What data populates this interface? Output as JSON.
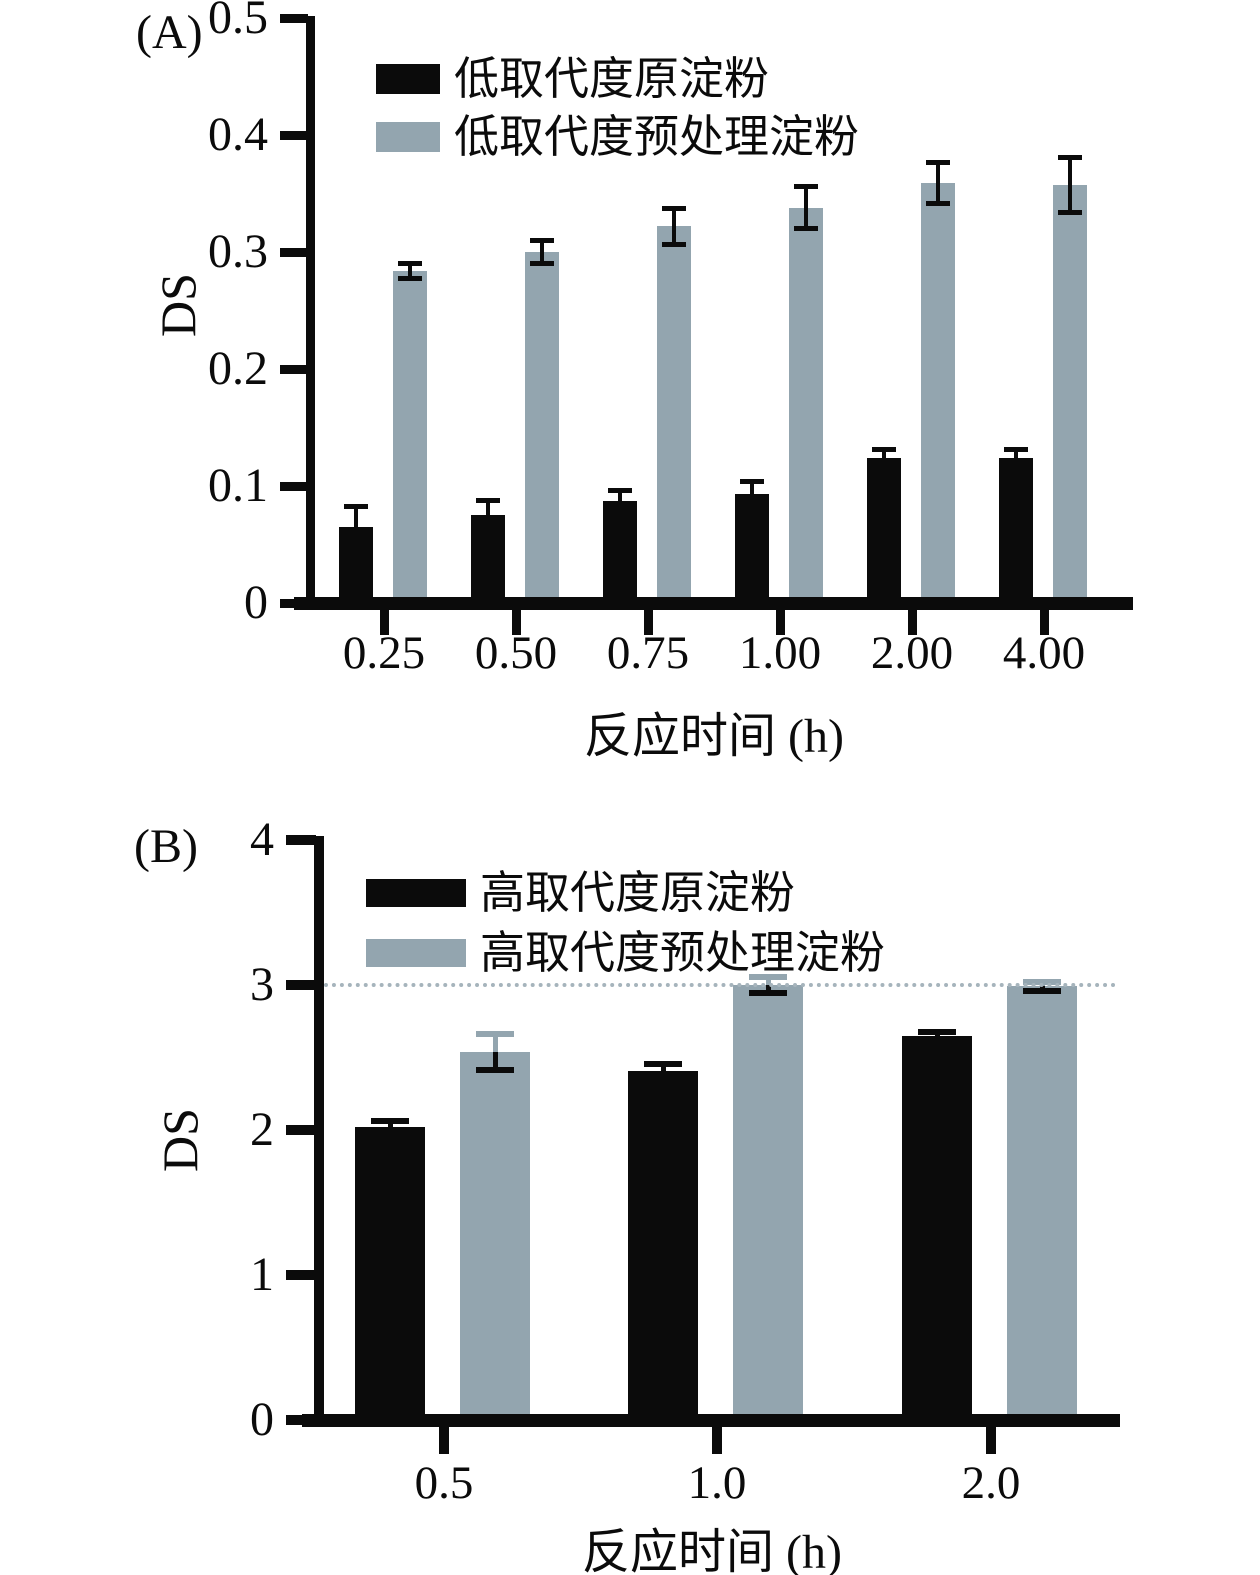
{
  "figure": {
    "background": "#ffffff",
    "ink_color": "#0b0b0b",
    "bar_gray_color": "#93a5af"
  },
  "chart_data": [
    {
      "type": "bar",
      "panel_label": "(A)",
      "categories": [
        "0.25",
        "0.50",
        "0.75",
        "1.00",
        "2.00",
        "4.00"
      ],
      "series": [
        {
          "name": "低取代度原淀粉",
          "color": "#0b0b0b",
          "values": [
            0.065,
            0.075,
            0.087,
            0.093,
            0.124,
            0.124
          ],
          "errors": [
            0.018,
            0.013,
            0.01,
            0.011,
            0.008,
            0.008
          ]
        },
        {
          "name": "低取代度预处理淀粉",
          "color": "#93a5af",
          "values": [
            0.284,
            0.3,
            0.322,
            0.338,
            0.359,
            0.357
          ],
          "errors": [
            0.007,
            0.01,
            0.016,
            0.018,
            0.018,
            0.024
          ]
        }
      ],
      "xlabel": "反应时间 (h)",
      "ylabel": "DS",
      "ylim": [
        0,
        0.5
      ],
      "yticks": [
        0,
        0.1,
        0.2,
        0.3,
        0.4,
        0.5
      ],
      "ytick_labels": [
        "0",
        "0.1",
        "0.2",
        "0.3",
        "0.4",
        "0.5"
      ],
      "grid": false,
      "legend_position": "top-left-inside"
    },
    {
      "type": "bar",
      "panel_label": "(B)",
      "categories": [
        "0.5",
        "1.0",
        "2.0"
      ],
      "series": [
        {
          "name": "高取代度原淀粉",
          "color": "#0b0b0b",
          "values": [
            2.02,
            2.41,
            2.65
          ],
          "errors": [
            0.05,
            0.05,
            0.035
          ]
        },
        {
          "name": "高取代度预处理淀粉",
          "color": "#93a5af",
          "values": [
            2.54,
            3.0,
            2.99
          ],
          "errors": [
            0.13,
            0.06,
            0.035
          ],
          "error_top_color": "#93a5af"
        }
      ],
      "xlabel": "反应时间 (h)",
      "ylabel": "DS",
      "ylim": [
        0,
        4
      ],
      "yticks": [
        0,
        1,
        2,
        3,
        4
      ],
      "ytick_labels": [
        "0",
        "1",
        "2",
        "3",
        "4"
      ],
      "reference_line": {
        "y": 3,
        "style": "dotted",
        "color": "#a6b4bc"
      },
      "grid": false,
      "legend_position": "top-left-inside"
    }
  ]
}
